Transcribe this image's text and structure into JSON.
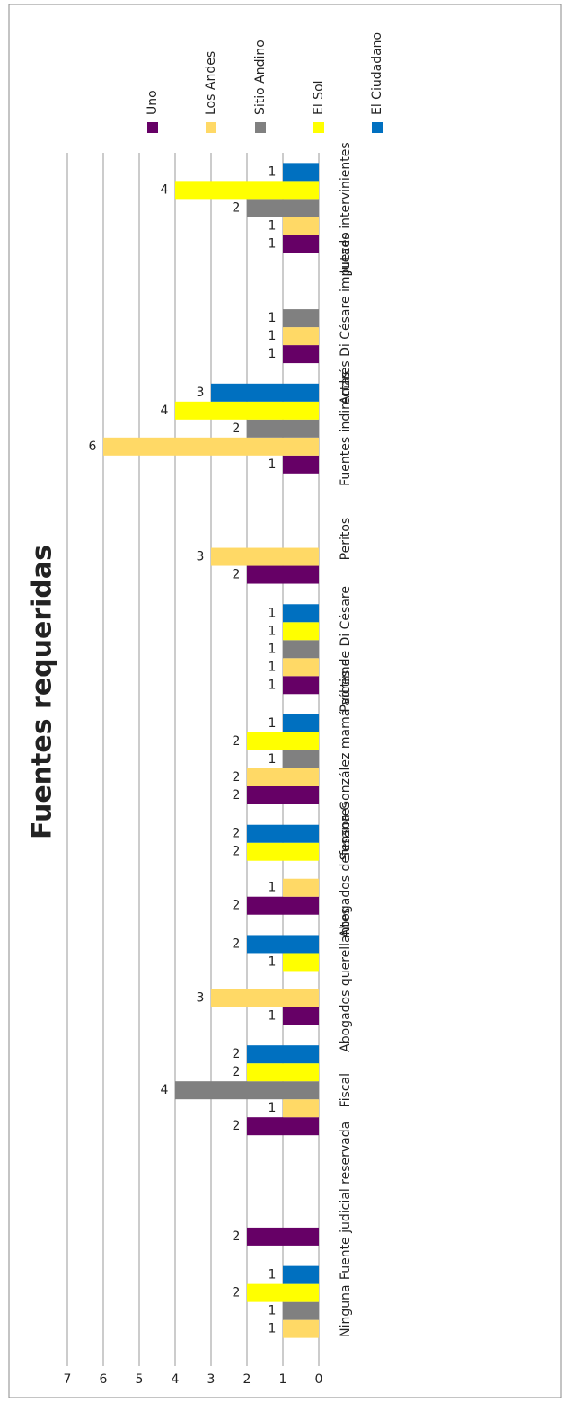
{
  "chart_data": {
    "type": "bar",
    "title": "Fuentes requeridas",
    "categories": [
      "Ninguna",
      "Fuente judicial reservada",
      "Fiscal",
      "Abogados querellantes",
      "Abogados defensores",
      "Susana González mamá víctima",
      "Padres de Di Césare",
      "Peritos",
      "Fuentes indirectas",
      "Andrés Di Césare imputado",
      "Jueces intervinientes"
    ],
    "series": [
      {
        "name": "Uno",
        "color": "#660066",
        "values": [
          null,
          2,
          2,
          1,
          2,
          2,
          1,
          2,
          1,
          1,
          1
        ]
      },
      {
        "name": "Los Andes",
        "color": "#ffd966",
        "values": [
          1,
          null,
          1,
          3,
          1,
          2,
          1,
          3,
          6,
          1,
          1
        ]
      },
      {
        "name": "Sitio Andino",
        "color": "#808080",
        "values": [
          1,
          null,
          4,
          null,
          null,
          1,
          1,
          null,
          2,
          1,
          2
        ]
      },
      {
        "name": "El Sol",
        "color": "#ffff00",
        "values": [
          2,
          null,
          2,
          1,
          2,
          2,
          1,
          null,
          4,
          null,
          4
        ]
      },
      {
        "name": "El Ciudadano",
        "color": "#0070c0",
        "values": [
          1,
          null,
          2,
          2,
          2,
          1,
          1,
          null,
          3,
          null,
          1
        ]
      }
    ],
    "ylim": [
      0,
      7
    ],
    "yticks": [
      0,
      1,
      2,
      3,
      4,
      5,
      6,
      7
    ],
    "grid": true,
    "legend": "right"
  }
}
